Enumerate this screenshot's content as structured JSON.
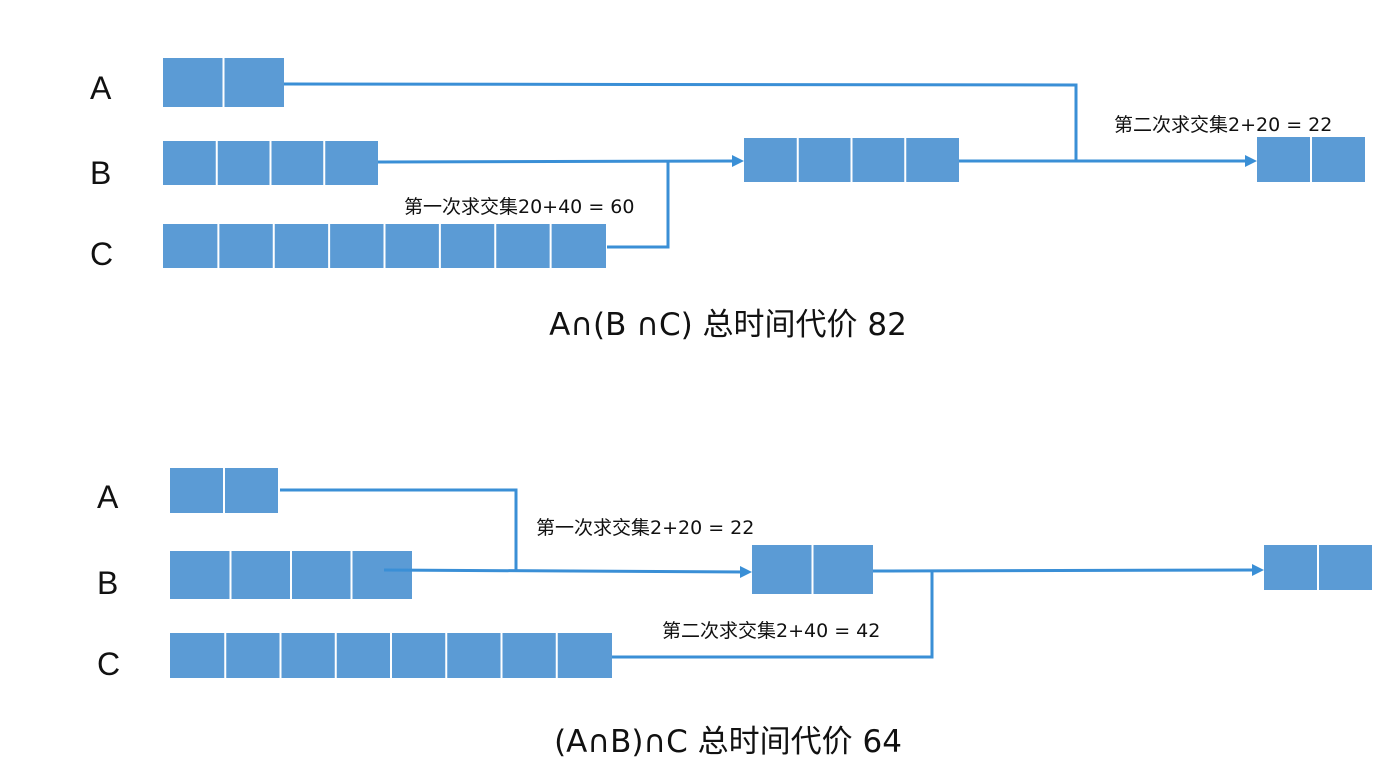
{
  "diagram1": {
    "labels": {
      "a": "A",
      "b": "B",
      "c": "C"
    },
    "blocks": {
      "a": 2,
      "b": 4,
      "c": 8,
      "bc": 4,
      "result": 2
    },
    "step1": "第一次求交集20+40 = 60",
    "step2": "第二次求交集2+20 = 22",
    "caption": "A∩(B ∩C) 总时间代价 82"
  },
  "diagram2": {
    "labels": {
      "a": "A",
      "b": "B",
      "c": "C"
    },
    "blocks": {
      "a": 2,
      "b": 4,
      "c": 8,
      "ab": 2,
      "result": 2
    },
    "step1": "第一次求交集2+20 = 22",
    "step2": "第二次求交集2+40 = 42",
    "caption": "(A∩B)∩C 总时间代价 64"
  },
  "colors": {
    "block": "#5b9bd5",
    "line": "#3a8fd6"
  }
}
